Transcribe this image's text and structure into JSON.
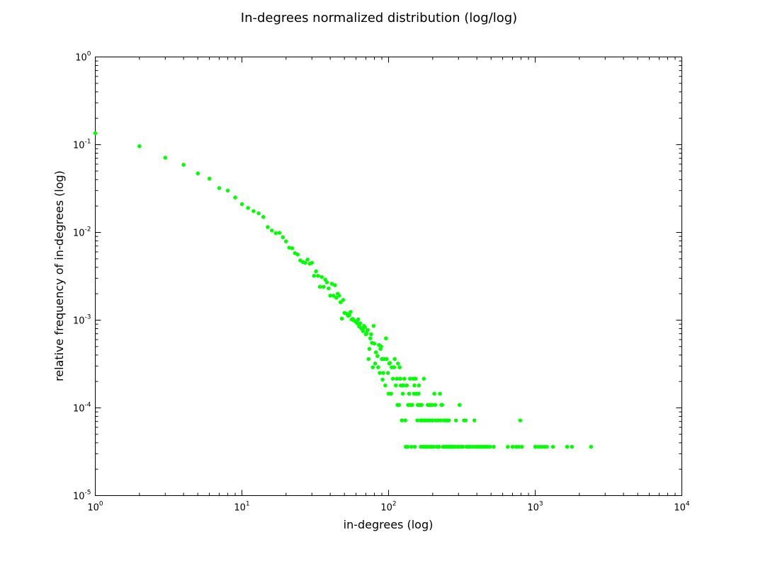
{
  "chart_data": {
    "type": "scatter",
    "title": "In-degrees normalized distribution (log/log)",
    "xlabel": "in-degrees (log)",
    "ylabel": "relative frequency of in-degrees (log)",
    "xscale": "log",
    "yscale": "log",
    "xlim": [
      1,
      10000
    ],
    "ylim": [
      1e-05,
      1
    ],
    "grid": false,
    "legend": "none",
    "marker_color": "#00ff00",
    "x_ticks": [
      {
        "base": "10",
        "exp": "0"
      },
      {
        "base": "10",
        "exp": "1"
      },
      {
        "base": "10",
        "exp": "2"
      },
      {
        "base": "10",
        "exp": "3"
      },
      {
        "base": "10",
        "exp": "4"
      }
    ],
    "y_ticks": [
      {
        "base": "10",
        "exp": "-5"
      },
      {
        "base": "10",
        "exp": "-4"
      },
      {
        "base": "10",
        "exp": "-3"
      },
      {
        "base": "10",
        "exp": "-2"
      },
      {
        "base": "10",
        "exp": "-1"
      },
      {
        "base": "10",
        "exp": "0"
      }
    ],
    "points": [
      [
        1,
        0.135
      ],
      [
        2,
        0.096
      ],
      [
        3,
        0.071
      ],
      [
        4,
        0.059
      ],
      [
        5,
        0.047
      ],
      [
        6,
        0.041
      ],
      [
        7,
        0.032
      ],
      [
        8,
        0.03
      ],
      [
        9,
        0.025
      ],
      [
        10,
        0.021
      ],
      [
        11,
        0.019
      ],
      [
        12,
        0.0175
      ],
      [
        13,
        0.0165
      ],
      [
        14,
        0.015
      ],
      [
        15,
        0.0115
      ],
      [
        16,
        0.0105
      ],
      [
        17,
        0.0098
      ],
      [
        18,
        0.0099
      ],
      [
        19,
        0.0088
      ],
      [
        20,
        0.0079
      ],
      [
        21,
        0.0067
      ],
      [
        22,
        0.0066
      ],
      [
        23,
        0.0058
      ],
      [
        24,
        0.0056
      ],
      [
        25,
        0.0048
      ],
      [
        26,
        0.0046
      ],
      [
        27,
        0.0045
      ],
      [
        28,
        0.0049
      ],
      [
        29,
        0.0044
      ],
      [
        30,
        0.0045
      ],
      [
        31,
        0.0032
      ],
      [
        32,
        0.0036
      ],
      [
        33,
        0.0032
      ],
      [
        34,
        0.0024
      ],
      [
        35,
        0.0031
      ],
      [
        36,
        0.0024
      ],
      [
        37,
        0.0029
      ],
      [
        38,
        0.0027
      ],
      [
        39,
        0.0023
      ],
      [
        40,
        0.0019
      ],
      [
        41,
        0.0026
      ],
      [
        42,
        0.0019
      ],
      [
        43,
        0.0025
      ],
      [
        44,
        0.0018
      ],
      [
        45,
        0.002
      ],
      [
        46,
        0.0019
      ],
      [
        47,
        0.0016
      ],
      [
        48,
        0.00104
      ],
      [
        49,
        0.0017
      ],
      [
        50,
        0.00121
      ],
      [
        52,
        0.00118
      ],
      [
        53,
        0.00112
      ],
      [
        54,
        0.00114
      ],
      [
        55,
        0.00124
      ],
      [
        56,
        0.00102
      ],
      [
        57,
        0.00103
      ],
      [
        58,
        0.00099
      ],
      [
        60,
        0.00096
      ],
      [
        61,
        0.00092
      ],
      [
        62,
        0.00102
      ],
      [
        63,
        0.00085
      ],
      [
        64,
        0.00092
      ],
      [
        65,
        0.00081
      ],
      [
        66,
        0.00079
      ],
      [
        67,
        0.00075
      ],
      [
        68,
        0.00086
      ],
      [
        69,
        0.00083
      ],
      [
        70,
        0.00069
      ],
      [
        71,
        0.00071
      ],
      [
        72,
        0.00077
      ],
      [
        73,
        0.00036
      ],
      [
        74,
        0.00047
      ],
      [
        75,
        0.00062
      ],
      [
        76,
        0.00069
      ],
      [
        77,
        0.00055
      ],
      [
        78,
        0.00029
      ],
      [
        79,
        0.00086
      ],
      [
        80,
        0.00054
      ],
      [
        81,
        0.00032
      ],
      [
        82,
        0.00043
      ],
      [
        84,
        0.00039
      ],
      [
        85,
        0.00029
      ],
      [
        86,
        0.00052
      ],
      [
        87,
        0.00025
      ],
      [
        88,
        0.00047
      ],
      [
        89,
        0.0005
      ],
      [
        90,
        0.00036
      ],
      [
        91,
        0.00021
      ],
      [
        92,
        0.00025
      ],
      [
        93,
        0.00036
      ],
      [
        95,
        0.00018
      ],
      [
        96,
        0.00062
      ],
      [
        97,
        0.00036
      ],
      [
        99,
        0.00025
      ],
      [
        100,
        0.000145
      ],
      [
        101,
        0.00032
      ],
      [
        102,
        0.000325
      ],
      [
        104,
        0.000145
      ],
      [
        105,
        0.00029
      ],
      [
        107,
        0.000215
      ],
      [
        109,
        0.00029
      ],
      [
        110,
        0.00036
      ],
      [
        112,
        0.00018
      ],
      [
        114,
        0.000215
      ],
      [
        115,
        0.000108
      ],
      [
        116,
        0.00032
      ],
      [
        118,
        0.000108
      ],
      [
        119,
        0.00029
      ],
      [
        120,
        0.000215
      ],
      [
        121,
        0.00018
      ],
      [
        123,
        7.2e-05
      ],
      [
        125,
        0.000145
      ],
      [
        126,
        0.00018
      ],
      [
        128,
        0.000215
      ],
      [
        130,
        7.2e-05
      ],
      [
        131,
        3.6e-05
      ],
      [
        133,
        0.00018
      ],
      [
        135,
        3.6e-05
      ],
      [
        136,
        0.000108
      ],
      [
        138,
        0.000145
      ],
      [
        140,
        0.000215
      ],
      [
        141,
        0.000108
      ],
      [
        143,
        3.6e-05
      ],
      [
        145,
        0.000108
      ],
      [
        147,
        0.000215
      ],
      [
        149,
        0.000145
      ],
      [
        150,
        0.00018
      ],
      [
        151,
        3.6e-05
      ],
      [
        153,
        0.000215
      ],
      [
        155,
        0.000145
      ],
      [
        157,
        7.2e-05
      ],
      [
        158,
        0.000108
      ],
      [
        160,
        0.000145
      ],
      [
        161,
        0.00018
      ],
      [
        163,
        0.000108
      ],
      [
        165,
        7.2e-05
      ],
      [
        166,
        3.6e-05
      ],
      [
        168,
        0.000108
      ],
      [
        170,
        7.2e-05
      ],
      [
        172,
        3.6e-05
      ],
      [
        174,
        0.000215
      ],
      [
        176,
        7.2e-05
      ],
      [
        178,
        3.6e-05
      ],
      [
        180,
        7.2e-05
      ],
      [
        182,
        3.6e-05
      ],
      [
        185,
        0.000108
      ],
      [
        187,
        7.2e-05
      ],
      [
        189,
        3.6e-05
      ],
      [
        191,
        0.000108
      ],
      [
        193,
        7.2e-05
      ],
      [
        196,
        3.6e-05
      ],
      [
        198,
        0.000108
      ],
      [
        200,
        7.2e-05
      ],
      [
        203,
        3.6e-05
      ],
      [
        205,
        0.000145
      ],
      [
        208,
        0.000108
      ],
      [
        210,
        7.2e-05
      ],
      [
        213,
        3.6e-05
      ],
      [
        216,
        3.6e-05
      ],
      [
        218,
        7.2e-05
      ],
      [
        221,
        3.6e-05
      ],
      [
        224,
        0.000145
      ],
      [
        227,
        7.2e-05
      ],
      [
        229,
        0.000108
      ],
      [
        232,
        0.000108
      ],
      [
        235,
        3.6e-05
      ],
      [
        238,
        7.2e-05
      ],
      [
        241,
        3.6e-05
      ],
      [
        244,
        7.2e-05
      ],
      [
        247,
        3.6e-05
      ],
      [
        251,
        7.2e-05
      ],
      [
        254,
        3.6e-05
      ],
      [
        258,
        7.2e-05
      ],
      [
        262,
        3.6e-05
      ],
      [
        266,
        3.6e-05
      ],
      [
        271,
        3.6e-05
      ],
      [
        276,
        3.6e-05
      ],
      [
        283,
        3.6e-05
      ],
      [
        288,
        7.2e-05
      ],
      [
        295,
        3.6e-05
      ],
      [
        300,
        3.6e-05
      ],
      [
        305,
        0.000108
      ],
      [
        312,
        3.6e-05
      ],
      [
        320,
        3.6e-05
      ],
      [
        327,
        7.2e-05
      ],
      [
        335,
        7.2e-05
      ],
      [
        340,
        3.6e-05
      ],
      [
        350,
        3.6e-05
      ],
      [
        362,
        3.6e-05
      ],
      [
        378,
        3.6e-05
      ],
      [
        385,
        7.2e-05
      ],
      [
        395,
        3.6e-05
      ],
      [
        410,
        3.6e-05
      ],
      [
        425,
        3.6e-05
      ],
      [
        440,
        3.6e-05
      ],
      [
        455,
        3.6e-05
      ],
      [
        470,
        3.6e-05
      ],
      [
        490,
        3.6e-05
      ],
      [
        520,
        3.6e-05
      ],
      [
        650,
        3.6e-05
      ],
      [
        700,
        3.6e-05
      ],
      [
        740,
        3.6e-05
      ],
      [
        770,
        3.6e-05
      ],
      [
        790,
        7.2e-05
      ],
      [
        810,
        3.6e-05
      ],
      [
        1000,
        3.6e-05
      ],
      [
        1050,
        3.6e-05
      ],
      [
        1100,
        3.6e-05
      ],
      [
        1150,
        3.6e-05
      ],
      [
        1200,
        3.6e-05
      ],
      [
        1320,
        3.6e-05
      ],
      [
        1650,
        3.6e-05
      ],
      [
        1780,
        3.6e-05
      ],
      [
        2400,
        3.6e-05
      ]
    ]
  }
}
